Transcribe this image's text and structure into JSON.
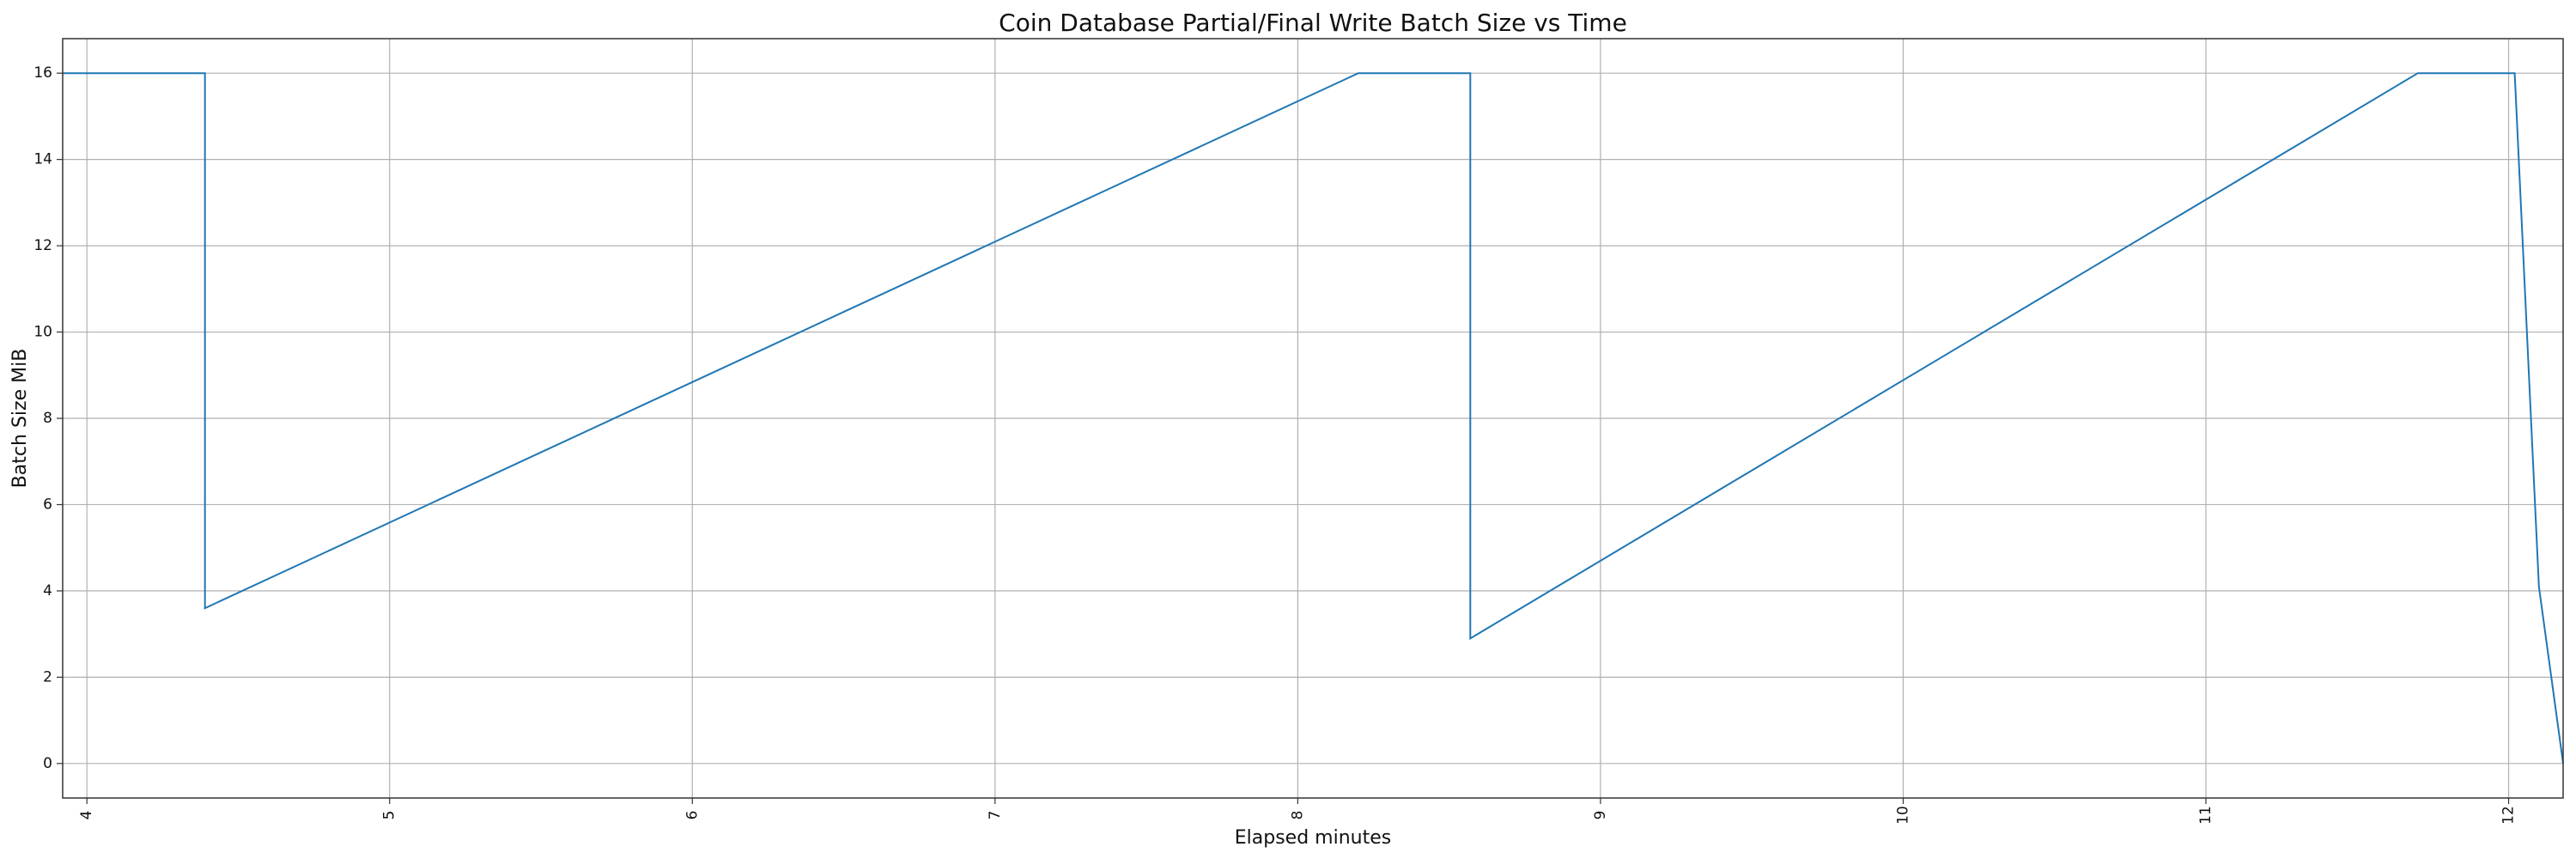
{
  "chart_data": {
    "type": "line",
    "title": "Coin Database Partial/Final Write Batch Size vs Time",
    "xlabel": "Elapsed minutes",
    "ylabel": "Batch Size MiB",
    "xlim": [
      3.92,
      12.18
    ],
    "ylim": [
      -0.8,
      16.8
    ],
    "xticks": [
      "4",
      "5",
      "6",
      "7",
      "8",
      "9",
      "10",
      "11",
      "12"
    ],
    "yticks": [
      "0",
      "2",
      "4",
      "6",
      "8",
      "10",
      "12",
      "14",
      "16"
    ],
    "grid": true,
    "line_color": "#1f77b4",
    "series": [
      {
        "x": [
          3.92,
          4.39,
          4.39,
          8.2,
          8.57,
          8.57,
          11.7,
          12.02,
          12.1,
          12.18
        ],
        "y": [
          16,
          16,
          3.6,
          16,
          16,
          2.9,
          16,
          16,
          4.1,
          0
        ]
      }
    ]
  }
}
